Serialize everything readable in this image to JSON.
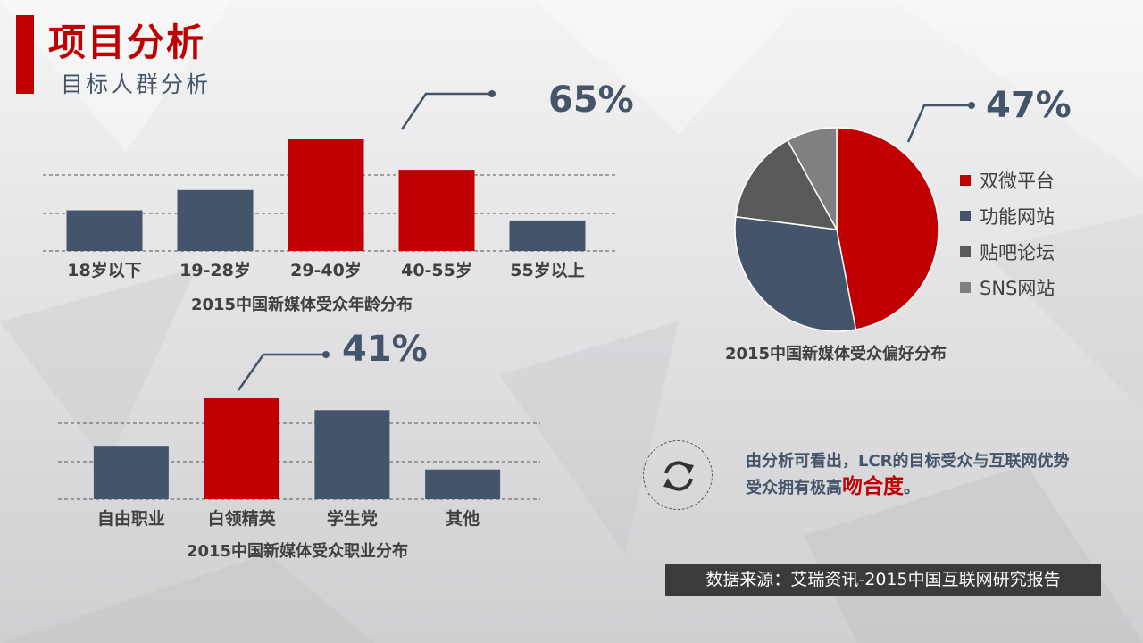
{
  "header": {
    "title": "项目分析",
    "subtitle": "目标人群分析"
  },
  "colors": {
    "accent": "#c00000",
    "slate": "#44546a",
    "dark_gray": "#595959",
    "gray": "#808080"
  },
  "chart_data": [
    {
      "type": "bar",
      "title": "2015中国新媒体受众年龄分布",
      "categories": [
        "18岁以下",
        "19-28岁",
        "29-40岁",
        "40-55岁",
        "55岁以上"
      ],
      "values": [
        8,
        12,
        22,
        16,
        6
      ],
      "highlighted": [
        "29-40岁",
        "40-55岁"
      ],
      "callout": "65%",
      "ylim": [
        0,
        22
      ],
      "grid": true
    },
    {
      "type": "pie",
      "title": "2015中国新媒体受众偏好分布",
      "categories": [
        "双微平台",
        "功能网站",
        "贴吧论坛",
        "SNS网站"
      ],
      "values": [
        47,
        30,
        15,
        8
      ],
      "colors": [
        "#c00000",
        "#44546a",
        "#595959",
        "#808080"
      ],
      "callout": "47%",
      "legend": "right"
    },
    {
      "type": "bar",
      "title": "2015中国新媒体受众职业分布",
      "categories": [
        "自由职业",
        "白领精英",
        "学生党",
        "其他"
      ],
      "values": [
        9,
        17,
        15,
        5
      ],
      "highlighted": [
        "白领精英"
      ],
      "callout": "41%",
      "ylim": [
        0,
        17
      ],
      "grid": true
    }
  ],
  "conclusion": {
    "text": "由分析可看出，LCR的目标受众与互联网优势受众拥有极高",
    "highlight": "吻合度",
    "end": "。"
  },
  "refresh_icon": "refresh-icon",
  "source": "数据来源：艾瑞资讯-2015中国互联网研究报告"
}
